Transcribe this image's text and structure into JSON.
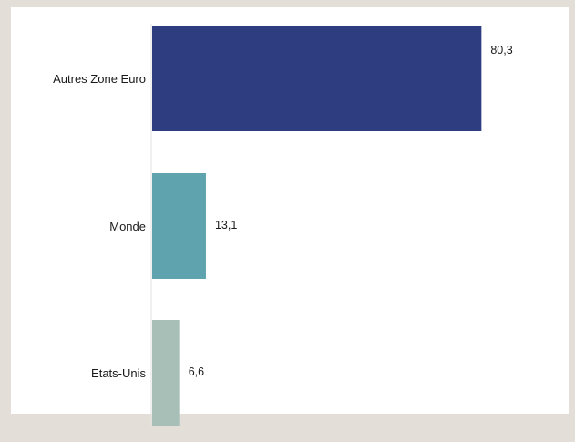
{
  "chart_data": {
    "type": "bar",
    "orientation": "horizontal",
    "title": "",
    "xlabel": "",
    "ylabel": "",
    "categories": [
      "Autres Zone Euro",
      "Monde",
      "Etats-Unis"
    ],
    "values": [
      80.3,
      13.1,
      6.6
    ],
    "value_labels": [
      "80,3",
      "13,1",
      "6,6"
    ],
    "colors": [
      "#2e3d80",
      "#5fa3af",
      "#a8bfb8"
    ],
    "xlim": [
      0,
      100
    ],
    "grid": false,
    "legend": "none"
  }
}
